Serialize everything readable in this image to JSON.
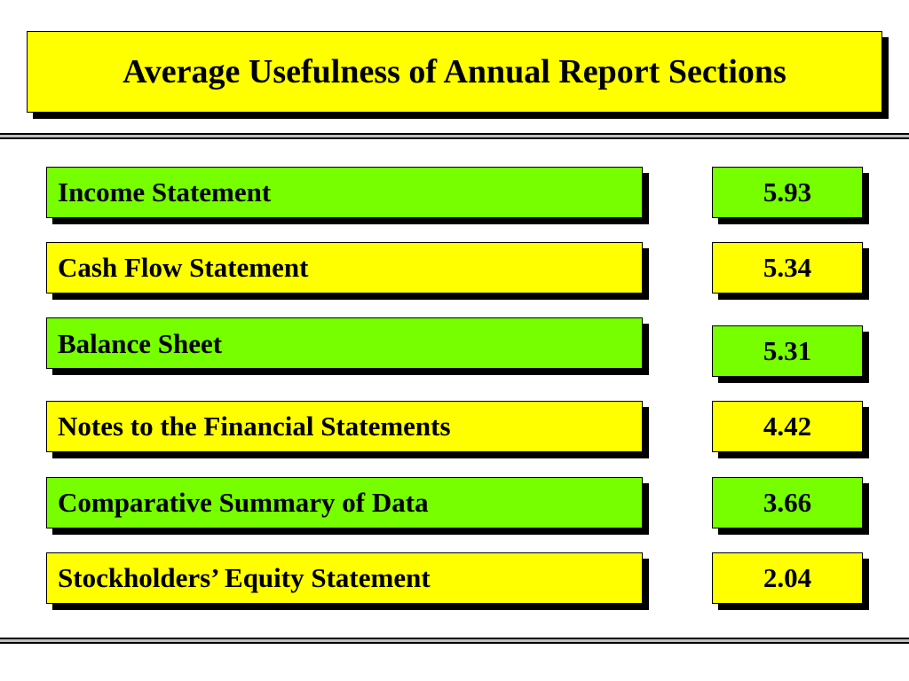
{
  "title": "Average Usefulness of Annual Report Sections",
  "colors": {
    "green": "#77ff00",
    "yellow": "#ffff00"
  },
  "rows": [
    {
      "label": "Income Statement",
      "value": "5.93",
      "label_color": "green",
      "value_color": "green"
    },
    {
      "label": "Cash Flow Statement",
      "value": "5.34",
      "label_color": "yellow",
      "value_color": "yellow"
    },
    {
      "label": "Balance Sheet",
      "value": "5.31",
      "label_color": "green",
      "value_color": "green"
    },
    {
      "label": "Notes to the Financial Statements",
      "value": "4.42",
      "label_color": "yellow",
      "value_color": "yellow"
    },
    {
      "label": "Comparative Summary of Data",
      "value": "3.66",
      "label_color": "green",
      "value_color": "green"
    },
    {
      "label": "Stockholders’ Equity Statement",
      "value": "2.04",
      "label_color": "yellow",
      "value_color": "yellow"
    }
  ]
}
